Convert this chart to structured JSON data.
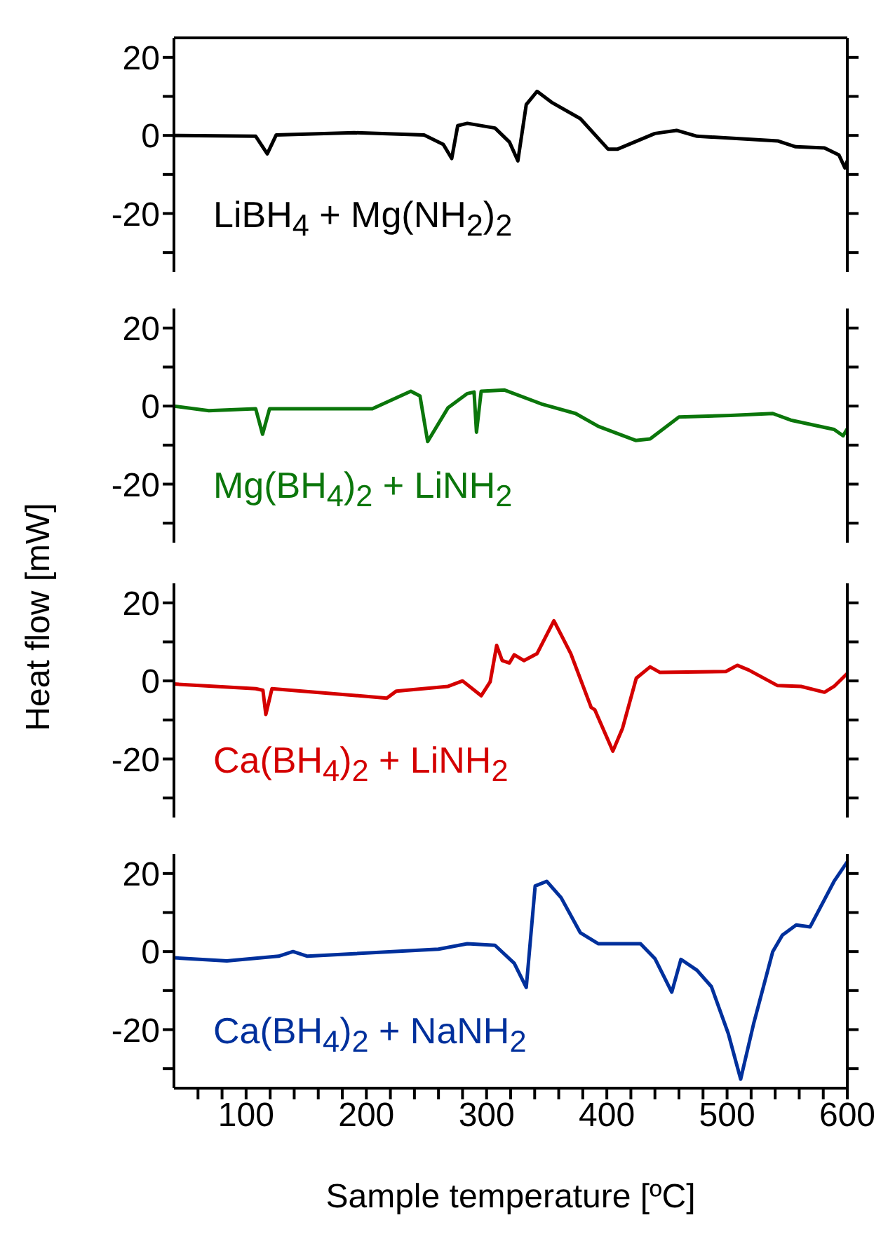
{
  "chart_data": [
    {
      "type": "line",
      "marker": "none",
      "line_style": "solid",
      "tick_labels": "y",
      "xlim": [
        40,
        600
      ],
      "ylim": [
        -35,
        25
      ],
      "yticks": [
        {
          "value": -30,
          "label": null
        },
        -20,
        {
          "value": -10,
          "label": null
        },
        0,
        {
          "value": 10,
          "label": null
        },
        20
      ],
      "annotations": [
        "LiBH$_{4}$ + Mg(NH$_{2}$)$_{2}$"
      ],
      "series": [
        {
          "color": "#000000",
          "x": [
            40,
            108,
            117.6,
            125,
            190,
            248,
            264,
            271,
            276,
            284,
            307,
            319,
            326,
            333,
            342,
            354,
            378,
            401,
            409,
            440,
            458,
            475,
            542,
            557,
            581,
            593,
            598,
            600
          ],
          "values": [
            0,
            -0.2,
            -4.7,
            0.1,
            0.7,
            0.1,
            -2.3,
            -5.9,
            2.5,
            3.1,
            1.9,
            -1.7,
            -6.5,
            7.9,
            11.3,
            8.5,
            4.3,
            -3.5,
            -3.5,
            0.5,
            1.3,
            -0.2,
            -1.4,
            -2.9,
            -3.2,
            -5,
            -8.3,
            -6.5
          ]
        }
      ]
    },
    {
      "type": "line",
      "marker": "none",
      "line_style": "solid",
      "tick_labels": "y",
      "xlim": [
        40,
        600
      ],
      "ylim": [
        -35,
        25
      ],
      "yticks": [
        {
          "value": -30,
          "label": null
        },
        -20,
        {
          "value": -10,
          "label": null
        },
        0,
        {
          "value": 10,
          "label": null
        },
        20
      ],
      "ylabel": "Heat flow [mW]",
      "annotations": [
        "Mg(BH$_{4}$)$_{2}$ + LiNH$_{2}$"
      ],
      "series": [
        {
          "color": "#0b760b",
          "x": [
            40,
            69,
            108,
            113.7,
            119.5,
            205,
            237,
            244.6,
            251,
            268,
            284,
            289.6,
            291.6,
            295.5,
            315,
            346,
            374,
            393,
            424,
            436,
            460,
            503,
            538,
            553,
            589,
            596.5,
            600
          ],
          "values": [
            0,
            -1.2,
            -0.7,
            -7.2,
            -0.7,
            -0.7,
            3.8,
            2.6,
            -9.1,
            -0.4,
            3.2,
            3.6,
            -6.7,
            3.8,
            4.1,
            0.5,
            -1.9,
            -5.2,
            -8.8,
            -8.4,
            -2.8,
            -2.4,
            -1.9,
            -3.6,
            -6,
            -7.6,
            -5.8
          ]
        }
      ]
    },
    {
      "type": "line",
      "marker": "none",
      "line_style": "solid",
      "tick_labels": "y",
      "xlim": [
        40,
        600
      ],
      "ylim": [
        -35,
        25
      ],
      "yticks": [
        {
          "value": -30,
          "label": null
        },
        -20,
        {
          "value": -10,
          "label": null
        },
        0,
        {
          "value": 10,
          "label": null
        },
        20
      ],
      "annotations": [
        "Ca(BH$_{4}$)$_{2}$ + LiNH$_{2}$"
      ],
      "series": [
        {
          "color": "#d40000",
          "x": [
            40,
            108,
            114,
            116.4,
            121.5,
            217,
            225,
            268,
            280,
            295.5,
            303,
            308.4,
            313,
            319,
            323,
            331,
            342,
            356,
            370,
            387,
            390,
            405,
            413,
            424.5,
            436,
            444,
            499,
            508.5,
            518,
            542,
            561.5,
            581,
            589,
            600
          ],
          "values": [
            -0.8,
            -2,
            -2.4,
            -8.6,
            -2,
            -4.4,
            -2.6,
            -1.4,
            0,
            -3.8,
            -0.2,
            9.1,
            5.2,
            4.6,
            6.7,
            5.2,
            7,
            15.4,
            7,
            -6.8,
            -7.4,
            -18,
            -12.2,
            0.7,
            3.6,
            2.2,
            2.4,
            4,
            2.8,
            -1.2,
            -1.4,
            -2.9,
            -1.4,
            1.9
          ]
        }
      ]
    },
    {
      "type": "line",
      "marker": "none",
      "line_style": "solid",
      "xlim": [
        40,
        600
      ],
      "xticks": [
        {
          "value": 60,
          "label": null
        },
        {
          "value": 80,
          "label": null
        },
        100,
        {
          "value": 120,
          "label": null
        },
        {
          "value": 140,
          "label": null
        },
        {
          "value": 160,
          "label": null
        },
        {
          "value": 180,
          "label": null
        },
        200,
        {
          "value": 220,
          "label": null
        },
        {
          "value": 240,
          "label": null
        },
        {
          "value": 260,
          "label": null
        },
        {
          "value": 280,
          "label": null
        },
        300,
        {
          "value": 320,
          "label": null
        },
        {
          "value": 340,
          "label": null
        },
        {
          "value": 360,
          "label": null
        },
        {
          "value": 380,
          "label": null
        },
        400,
        {
          "value": 420,
          "label": null
        },
        {
          "value": 440,
          "label": null
        },
        {
          "value": 460,
          "label": null
        },
        {
          "value": 480,
          "label": null
        },
        500,
        {
          "value": 520,
          "label": null
        },
        {
          "value": 540,
          "label": null
        },
        {
          "value": 560,
          "label": null
        },
        {
          "value": 580,
          "label": null
        },
        600
      ],
      "xlabel": "Sample temperature [ºC]",
      "ylim": [
        -35,
        25
      ],
      "yticks": [
        {
          "value": -30,
          "label": null
        },
        -20,
        {
          "value": -10,
          "label": null
        },
        0,
        {
          "value": 10,
          "label": null
        },
        20
      ],
      "annotations": [
        "Ca(BH$_{4}$)$_{2}$ + NaNH$_{2}$"
      ],
      "series": [
        {
          "color": "#00309c",
          "x": [
            40,
            84,
            127,
            139,
            151,
            260,
            284,
            307,
            323,
            333,
            340.4,
            350,
            362,
            378,
            393,
            428,
            440,
            454,
            461.6,
            475,
            487,
            501,
            511.3,
            522,
            538,
            546,
            557.5,
            569,
            589,
            600
          ],
          "values": [
            -1.6,
            -2.4,
            -1.2,
            0,
            -1.2,
            0.6,
            2,
            1.6,
            -3,
            -9.2,
            16.8,
            18,
            13.8,
            4.8,
            2,
            2,
            -1.8,
            -10.4,
            -2,
            -4.8,
            -9,
            -21,
            -32.7,
            -18.6,
            0,
            4.2,
            6.8,
            6.3,
            18,
            23
          ]
        }
      ]
    }
  ]
}
